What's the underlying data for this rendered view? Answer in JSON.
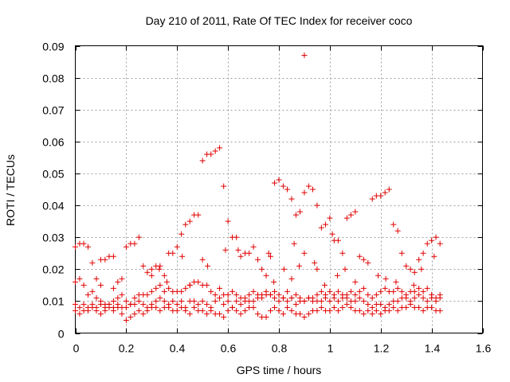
{
  "chart_data": {
    "type": "scatter",
    "title": "Day 210 of 2011, Rate Of TEC Index for receiver coco",
    "xlabel": "GPS time / hours",
    "ylabel": "ROTI / TECUs",
    "xlim": [
      0,
      1.6
    ],
    "ylim": [
      0,
      0.09
    ],
    "xticks": [
      "0",
      "0.2",
      "0.4",
      "0.6",
      "0.8",
      "1",
      "1.2",
      "1.4",
      "1.6"
    ],
    "xtick_values": [
      0,
      0.2,
      0.4,
      0.6,
      0.8,
      1.0,
      1.2,
      1.4,
      1.6
    ],
    "yticks": [
      "0",
      "0.01",
      "0.02",
      "0.03",
      "0.04",
      "0.05",
      "0.06",
      "0.07",
      "0.08",
      "0.09"
    ],
    "ytick_values": [
      0,
      0.01,
      0.02,
      0.03,
      0.04,
      0.05,
      0.06,
      0.07,
      0.08,
      0.09
    ],
    "grid": true,
    "marker": "+",
    "marker_color": "#e00000",
    "x_data_range": [
      0,
      1.433
    ],
    "series": [
      {
        "x": [
          0.0,
          0.017,
          0.033,
          0.05,
          0.067,
          0.083,
          0.1,
          0.117,
          0.133,
          0.15,
          0.167,
          0.183,
          0.2,
          0.217,
          0.233,
          0.25,
          0.267,
          0.283,
          0.3,
          0.317,
          0.333,
          0.35,
          0.367,
          0.383,
          0.4,
          0.417,
          0.433,
          0.45,
          0.467,
          0.483,
          0.5,
          0.517,
          0.533,
          0.55,
          0.567,
          0.583,
          0.6,
          0.617,
          0.633,
          0.65,
          0.667,
          0.683,
          0.7,
          0.717,
          0.733,
          0.75,
          0.767,
          0.783,
          0.8,
          0.817,
          0.833,
          0.85,
          0.867,
          0.883,
          0.9,
          0.917,
          0.933,
          0.95,
          0.967,
          0.983,
          1.0,
          1.017,
          1.033,
          1.05,
          1.067,
          1.083,
          1.1,
          1.117,
          1.133,
          1.15,
          1.167,
          1.183,
          1.2,
          1.217,
          1.233,
          1.25,
          1.267,
          1.283,
          1.3,
          1.317,
          1.333,
          1.35,
          1.367,
          1.383,
          1.4,
          1.417,
          1.433
        ],
        "y": [
          0.009,
          0.008,
          0.009,
          0.008,
          0.009,
          0.008,
          0.009,
          0.008,
          0.009,
          0.008,
          0.009,
          0.008,
          0.008,
          0.009,
          0.009,
          0.01,
          0.009,
          0.008,
          0.009,
          0.01,
          0.011,
          0.01,
          0.009,
          0.01,
          0.009,
          0.01,
          0.008,
          0.01,
          0.01,
          0.009,
          0.01,
          0.009,
          0.008,
          0.01,
          0.011,
          0.009,
          0.01,
          0.008,
          0.01,
          0.009,
          0.011,
          0.01,
          0.01,
          0.011,
          0.011,
          0.012,
          0.012,
          0.011,
          0.01,
          0.011,
          0.01,
          0.011,
          0.009,
          0.01,
          0.01,
          0.011,
          0.01,
          0.01,
          0.01,
          0.011,
          0.01,
          0.011,
          0.01,
          0.011,
          0.012,
          0.01,
          0.01,
          0.011,
          0.01,
          0.009,
          0.008,
          0.009,
          0.009,
          0.008,
          0.009,
          0.01,
          0.01,
          0.011,
          0.011,
          0.01,
          0.011,
          0.012,
          0.011,
          0.01,
          0.011,
          0.01,
          0.011
        ]
      },
      {
        "x": [
          0.0,
          0.017,
          0.033,
          0.05,
          0.067,
          0.083,
          0.1,
          0.117,
          0.133,
          0.15,
          0.167,
          0.183,
          0.2,
          0.217,
          0.233,
          0.25,
          0.267,
          0.283,
          0.3,
          0.317,
          0.333,
          0.35,
          0.367,
          0.383,
          0.4,
          0.417,
          0.433,
          0.45,
          0.467,
          0.483,
          0.5,
          0.517,
          0.533,
          0.55,
          0.567,
          0.583,
          0.6,
          0.617,
          0.633,
          0.65,
          0.667,
          0.683,
          0.7,
          0.717,
          0.733,
          0.75,
          0.767,
          0.783,
          0.8,
          0.817,
          0.833,
          0.85,
          0.867,
          0.883,
          0.9,
          0.917,
          0.933,
          0.95,
          0.967,
          0.983,
          1.0,
          1.017,
          1.033,
          1.05,
          1.067,
          1.083,
          1.1,
          1.117,
          1.133,
          1.15,
          1.167,
          1.183,
          1.2,
          1.217,
          1.233,
          1.25,
          1.267,
          1.283,
          1.3,
          1.317,
          1.333,
          1.35,
          1.367,
          1.383,
          1.4,
          1.417,
          1.433
        ],
        "y": [
          0.016,
          0.017,
          0.015,
          0.012,
          0.013,
          0.011,
          0.01,
          0.009,
          0.009,
          0.01,
          0.011,
          0.012,
          0.01,
          0.009,
          0.011,
          0.012,
          0.012,
          0.012,
          0.013,
          0.014,
          0.015,
          0.013,
          0.014,
          0.013,
          0.013,
          0.013,
          0.014,
          0.015,
          0.016,
          0.016,
          0.015,
          0.015,
          0.013,
          0.012,
          0.014,
          0.012,
          0.012,
          0.013,
          0.012,
          0.011,
          0.01,
          0.012,
          0.013,
          0.012,
          0.012,
          0.013,
          0.012,
          0.013,
          0.012,
          0.011,
          0.013,
          0.011,
          0.012,
          0.011,
          0.01,
          0.011,
          0.011,
          0.012,
          0.013,
          0.012,
          0.013,
          0.012,
          0.013,
          0.012,
          0.011,
          0.013,
          0.012,
          0.013,
          0.014,
          0.012,
          0.011,
          0.012,
          0.013,
          0.014,
          0.013,
          0.013,
          0.014,
          0.013,
          0.012,
          0.013,
          0.013,
          0.014,
          0.013,
          0.014,
          0.012,
          0.011,
          0.012
        ]
      },
      {
        "x": [
          0.0,
          0.017,
          0.033,
          0.05,
          0.067,
          0.083,
          0.1,
          0.117,
          0.133,
          0.15,
          0.167,
          0.183,
          0.2,
          0.217,
          0.233,
          0.25,
          0.267,
          0.283,
          0.3,
          0.317,
          0.333,
          0.35,
          0.367,
          0.383,
          0.4,
          0.417,
          0.433,
          0.45,
          0.467,
          0.483,
          0.5,
          0.517,
          0.533,
          0.55,
          0.567,
          0.583,
          0.6,
          0.617,
          0.633,
          0.65,
          0.667,
          0.683,
          0.7,
          0.717,
          0.733,
          0.75,
          0.767,
          0.783,
          0.8,
          0.817,
          0.833,
          0.85,
          0.867,
          0.883,
          0.9,
          0.917,
          0.933,
          0.95,
          0.967,
          0.983,
          1.0,
          1.017,
          1.033,
          1.05,
          1.067,
          1.083,
          1.1,
          1.117,
          1.133,
          1.15,
          1.167,
          1.183,
          1.2,
          1.217,
          1.233,
          1.25,
          1.267,
          1.283,
          1.3,
          1.317,
          1.333,
          1.35,
          1.367,
          1.383,
          1.4,
          1.417,
          1.433
        ],
        "y": [
          0.027,
          0.028,
          0.028,
          0.027,
          0.022,
          0.017,
          0.023,
          0.023,
          0.024,
          0.024,
          0.016,
          0.017,
          0.027,
          0.028,
          0.028,
          0.03,
          0.021,
          0.019,
          0.02,
          0.021,
          0.021,
          0.018,
          0.025,
          0.025,
          0.027,
          0.031,
          0.034,
          0.035,
          0.037,
          0.037,
          0.054,
          0.056,
          0.056,
          0.057,
          0.058,
          0.046,
          0.035,
          0.03,
          0.03,
          0.024,
          0.025,
          0.025,
          0.027,
          0.023,
          0.02,
          0.018,
          0.024,
          0.047,
          0.048,
          0.046,
          0.045,
          0.042,
          0.037,
          0.038,
          0.044,
          0.046,
          0.045,
          0.04,
          0.033,
          0.034,
          0.036,
          0.029,
          0.029,
          0.025,
          0.036,
          0.037,
          0.038,
          0.024,
          0.023,
          0.022,
          0.042,
          0.043,
          0.043,
          0.044,
          0.045,
          0.034,
          0.032,
          0.025,
          0.021,
          0.02,
          0.019,
          0.023,
          0.025,
          0.028,
          0.029,
          0.03,
          0.028
        ]
      },
      {
        "x": [
          0.0,
          0.017,
          0.033,
          0.05,
          0.067,
          0.083,
          0.1,
          0.117,
          0.133,
          0.15,
          0.167,
          0.183,
          0.2,
          0.217,
          0.233,
          0.25,
          0.267,
          0.283,
          0.3,
          0.317,
          0.333,
          0.35,
          0.367,
          0.383,
          0.4,
          0.417,
          0.433,
          0.45,
          0.467,
          0.483,
          0.5,
          0.517,
          0.533,
          0.55,
          0.567,
          0.583,
          0.6,
          0.617,
          0.633,
          0.65,
          0.667,
          0.683,
          0.7,
          0.717,
          0.733,
          0.75,
          0.767,
          0.783,
          0.8,
          0.817,
          0.833,
          0.85,
          0.867,
          0.883,
          0.9,
          0.917,
          0.933,
          0.95,
          0.967,
          0.983,
          1.0,
          1.017,
          1.033,
          1.05,
          1.067,
          1.083,
          1.1,
          1.117,
          1.133,
          1.15,
          1.167,
          1.183,
          1.2,
          1.217,
          1.233,
          1.25,
          1.267,
          1.283,
          1.3,
          1.317,
          1.333,
          1.35,
          1.367,
          1.383,
          1.4,
          1.417,
          1.433
        ],
        "y": [
          0.007,
          0.006,
          0.007,
          0.007,
          0.008,
          0.007,
          0.006,
          0.007,
          0.008,
          0.007,
          0.008,
          0.006,
          0.004,
          0.005,
          0.006,
          0.007,
          0.006,
          0.007,
          0.008,
          0.008,
          0.007,
          0.008,
          0.008,
          0.007,
          0.007,
          0.008,
          0.007,
          0.006,
          0.008,
          0.007,
          0.007,
          0.006,
          0.007,
          0.006,
          0.006,
          0.005,
          0.007,
          0.008,
          0.007,
          0.006,
          0.007,
          0.008,
          0.008,
          0.006,
          0.005,
          0.005,
          0.007,
          0.008,
          0.007,
          0.006,
          0.008,
          0.007,
          0.006,
          0.006,
          0.005,
          0.006,
          0.007,
          0.007,
          0.008,
          0.007,
          0.007,
          0.008,
          0.007,
          0.008,
          0.009,
          0.008,
          0.007,
          0.007,
          0.006,
          0.007,
          0.006,
          0.007,
          0.006,
          0.007,
          0.007,
          0.008,
          0.007,
          0.008,
          0.008,
          0.009,
          0.008,
          0.008,
          0.007,
          0.008,
          0.008,
          0.007,
          0.007
        ]
      },
      {
        "x": [
          0.1,
          0.15,
          0.3,
          0.33,
          0.36,
          0.42,
          0.45,
          0.5,
          0.52,
          0.59,
          0.64,
          0.76,
          0.78,
          0.82,
          0.85,
          0.86,
          0.88,
          0.9,
          0.94,
          0.95,
          0.98,
          1.01,
          1.03,
          1.06,
          1.1,
          1.19,
          1.22,
          1.26,
          1.33,
          1.36,
          1.41
        ],
        "y": [
          0.015,
          0.014,
          0.018,
          0.02,
          0.016,
          0.024,
          0.015,
          0.023,
          0.021,
          0.026,
          0.026,
          0.025,
          0.016,
          0.02,
          0.017,
          0.028,
          0.021,
          0.025,
          0.022,
          0.02,
          0.015,
          0.031,
          0.018,
          0.02,
          0.016,
          0.018,
          0.017,
          0.016,
          0.015,
          0.02,
          0.024
        ]
      },
      {
        "x": [
          0.9
        ],
        "y": [
          0.087
        ]
      }
    ]
  }
}
